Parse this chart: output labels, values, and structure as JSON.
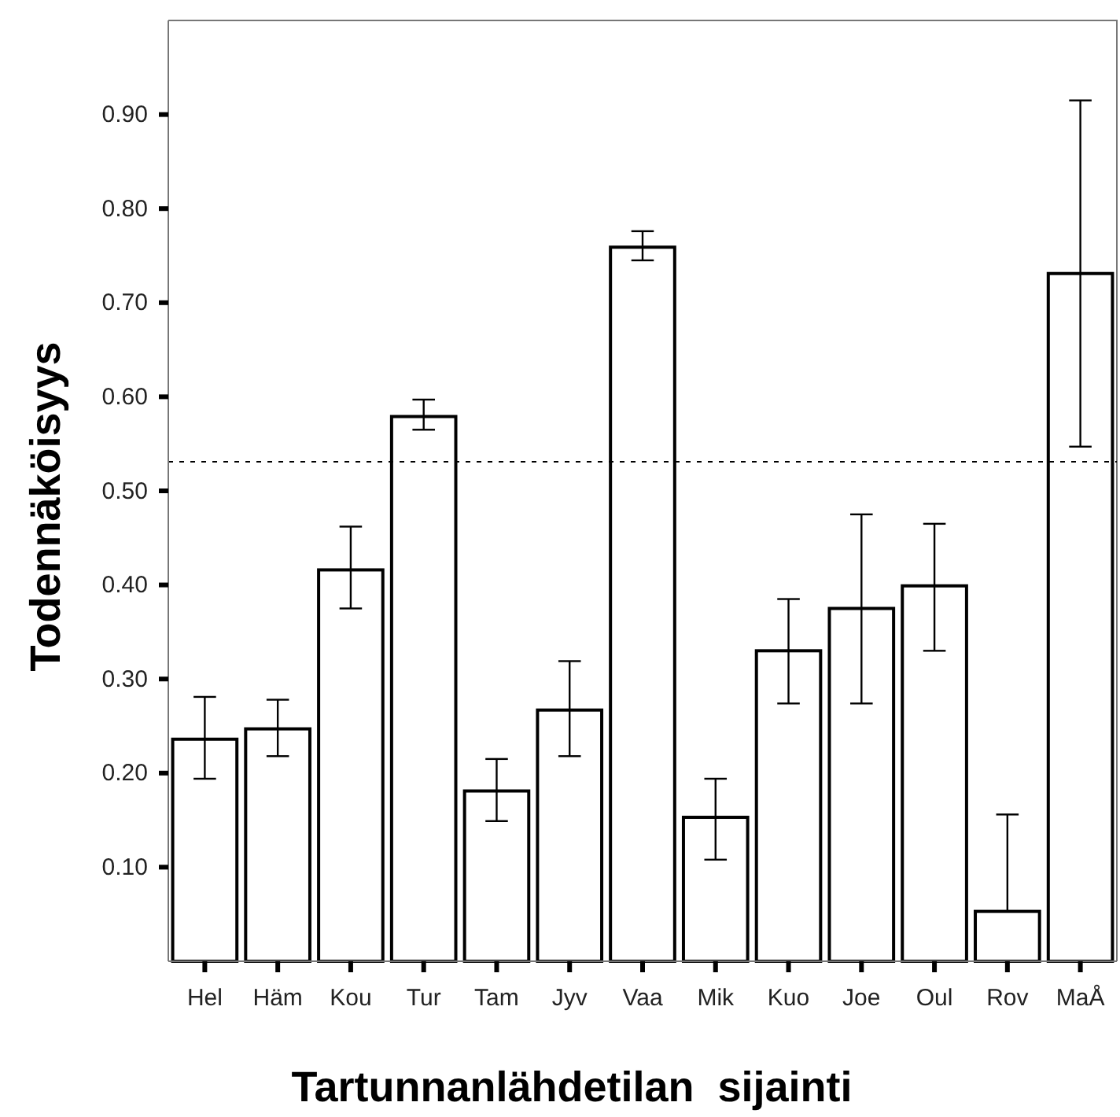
{
  "chart_data": {
    "type": "bar",
    "xlabel": "Tartunnanlähdetilan  sijainti",
    "ylabel": "Todennäköisyys",
    "categories": [
      "Hel",
      "Häm",
      "Kou",
      "Tur",
      "Tam",
      "Jyv",
      "Vaa",
      "Mik",
      "Kuo",
      "Joe",
      "Oul",
      "Rov",
      "MaÅ"
    ],
    "values": [
      0.236,
      0.247,
      0.416,
      0.579,
      0.181,
      0.267,
      0.759,
      0.153,
      0.33,
      0.375,
      0.399,
      0.053,
      0.731
    ],
    "errors": [
      [
        0.194,
        0.281
      ],
      [
        0.218,
        0.278
      ],
      [
        0.375,
        0.462
      ],
      [
        0.565,
        0.597
      ],
      [
        0.149,
        0.215
      ],
      [
        0.218,
        0.319
      ],
      [
        0.745,
        0.776
      ],
      [
        0.108,
        0.194
      ],
      [
        0.274,
        0.385
      ],
      [
        0.274,
        0.475
      ],
      [
        0.33,
        0.465
      ],
      [
        0.053,
        0.156
      ],
      [
        0.547,
        0.915
      ]
    ],
    "color": "#ffffff",
    "ylim": [
      0,
      1.0
    ],
    "yticks": [
      {
        "value": 0.1,
        "label": "0.10"
      },
      {
        "value": 0.2,
        "label": "0.20"
      },
      {
        "value": 0.3,
        "label": "0.30"
      },
      {
        "value": 0.4,
        "label": "0.40"
      },
      {
        "value": 0.5,
        "label": "0.50"
      },
      {
        "value": 0.6,
        "label": "0.60"
      },
      {
        "value": 0.7,
        "label": "0.70"
      },
      {
        "value": 0.8,
        "label": "0.80"
      },
      {
        "value": 0.9,
        "label": "0.90"
      }
    ],
    "ref_lines": [
      {
        "axis": "y",
        "value": 0.531,
        "label": null,
        "line_style": "dotted"
      }
    ]
  }
}
